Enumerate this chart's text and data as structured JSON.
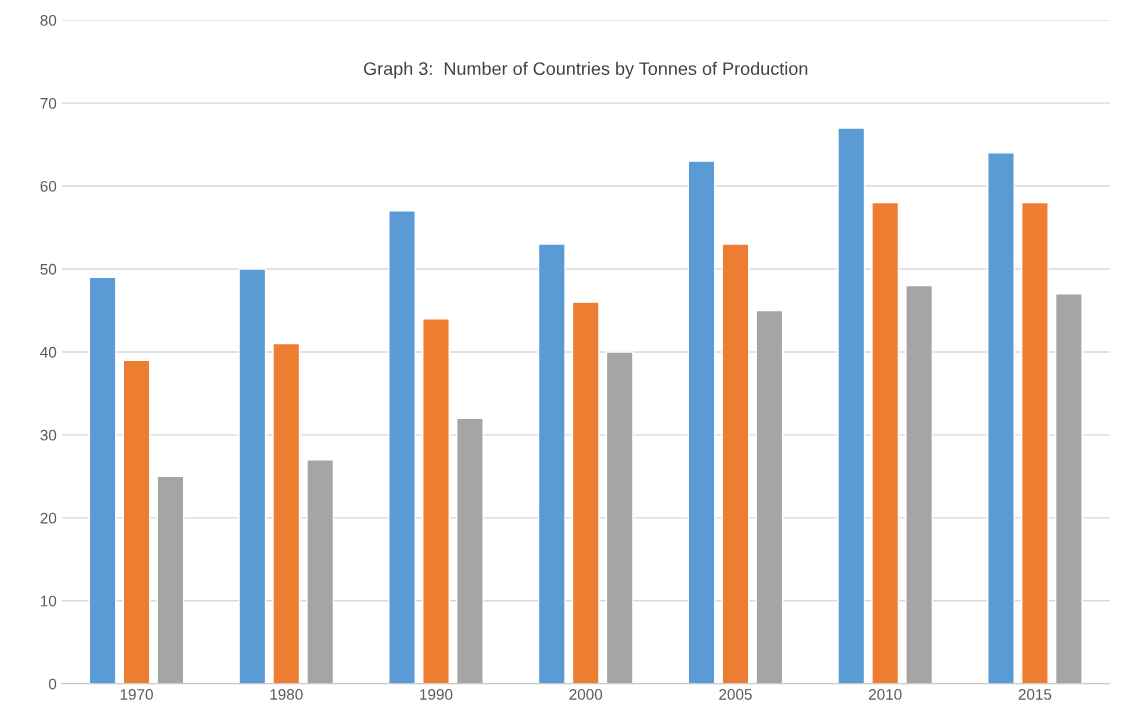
{
  "chart_data": {
    "type": "bar",
    "title": "Graph 3:  Number of Countries by Tonnes of Production",
    "categories": [
      "1970",
      "1980",
      "1990",
      "2000",
      "2005",
      "2010",
      "2015"
    ],
    "series": [
      {
        "color": "#5b9bd5",
        "values": [
          49,
          50,
          57,
          53,
          63,
          67,
          64
        ]
      },
      {
        "color": "#ed7d31",
        "values": [
          39,
          41,
          44,
          46,
          53,
          58,
          58
        ]
      },
      {
        "color": "#a5a5a5",
        "values": [
          25,
          27,
          32,
          40,
          45,
          48,
          47
        ]
      }
    ],
    "ylim": [
      0,
      80
    ],
    "yticks": [
      0,
      10,
      20,
      30,
      40,
      50,
      60,
      70,
      80
    ],
    "grid": "y",
    "legend": false
  }
}
